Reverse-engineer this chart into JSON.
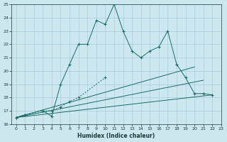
{
  "xlabel": "Humidex (Indice chaleur)",
  "bg_color": "#cce8ee",
  "grid_color": "#aacdd6",
  "line_color": "#1a6b6b",
  "x_all": [
    0,
    1,
    2,
    3,
    4,
    5,
    6,
    7,
    8,
    9,
    10,
    11,
    12,
    13,
    14,
    15,
    16,
    17,
    18,
    19,
    20,
    21,
    22,
    23
  ],
  "line1": [
    16.5,
    16.7,
    null,
    17.0,
    16.6,
    19.0,
    20.5,
    22.0,
    22.0,
    23.8,
    23.5,
    25.0,
    23.0,
    21.5,
    21.0,
    21.5,
    21.8,
    23.0,
    20.5,
    19.5,
    18.3,
    18.3,
    18.2,
    null
  ],
  "line2_x": [
    0,
    1,
    3,
    4,
    5,
    6,
    7,
    10
  ],
  "line2_y": [
    16.5,
    16.7,
    17.0,
    17.0,
    17.3,
    17.7,
    18.0,
    19.5
  ],
  "line3_x": [
    0,
    20
  ],
  "line3_y": [
    16.5,
    20.3
  ],
  "line4_x": [
    0,
    21
  ],
  "line4_y": [
    16.5,
    19.3
  ],
  "line5_x": [
    0,
    22
  ],
  "line5_y": [
    16.5,
    18.2
  ],
  "ylim": [
    16,
    25
  ],
  "xlim": [
    -0.5,
    23
  ],
  "yticks": [
    16,
    17,
    18,
    19,
    20,
    21,
    22,
    23,
    24,
    25
  ],
  "xticks": [
    0,
    1,
    2,
    3,
    4,
    5,
    6,
    7,
    8,
    9,
    10,
    11,
    12,
    13,
    14,
    15,
    16,
    17,
    18,
    19,
    20,
    21,
    22,
    23
  ]
}
